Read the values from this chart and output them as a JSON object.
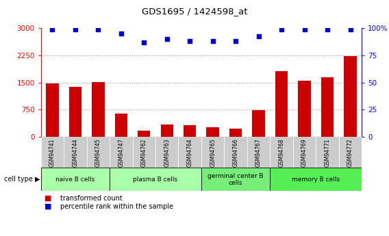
{
  "title": "GDS1695 / 1424598_at",
  "samples": [
    "GSM94741",
    "GSM94744",
    "GSM94745",
    "GSM94747",
    "GSM94762",
    "GSM94763",
    "GSM94764",
    "GSM94765",
    "GSM94766",
    "GSM94767",
    "GSM94768",
    "GSM94769",
    "GSM94771",
    "GSM94772"
  ],
  "transformed_count": [
    1480,
    1380,
    1520,
    650,
    170,
    350,
    320,
    270,
    230,
    740,
    1820,
    1560,
    1650,
    2230
  ],
  "percentile_rank": [
    99,
    99,
    99,
    95,
    87,
    90,
    88,
    88,
    88,
    93,
    99,
    99,
    99,
    99
  ],
  "cell_groups": [
    {
      "label": "naive B cells",
      "start": 0,
      "end": 3,
      "color": "#aaffaa"
    },
    {
      "label": "plasma B cells",
      "start": 3,
      "end": 7,
      "color": "#aaffaa"
    },
    {
      "label": "germinal center B\ncells",
      "start": 7,
      "end": 10,
      "color": "#77ee77"
    },
    {
      "label": "memory B cells",
      "start": 10,
      "end": 14,
      "color": "#55ee55"
    }
  ],
  "bar_color": "#cc0000",
  "dot_color": "#0000cc",
  "ylim_left": [
    0,
    3000
  ],
  "ylim_right": [
    0,
    100
  ],
  "yticks_left": [
    0,
    750,
    1500,
    2250,
    3000
  ],
  "yticks_right": [
    0,
    25,
    50,
    75,
    100
  ],
  "sample_box_color": "#cccccc",
  "bg_color": "#ffffff"
}
